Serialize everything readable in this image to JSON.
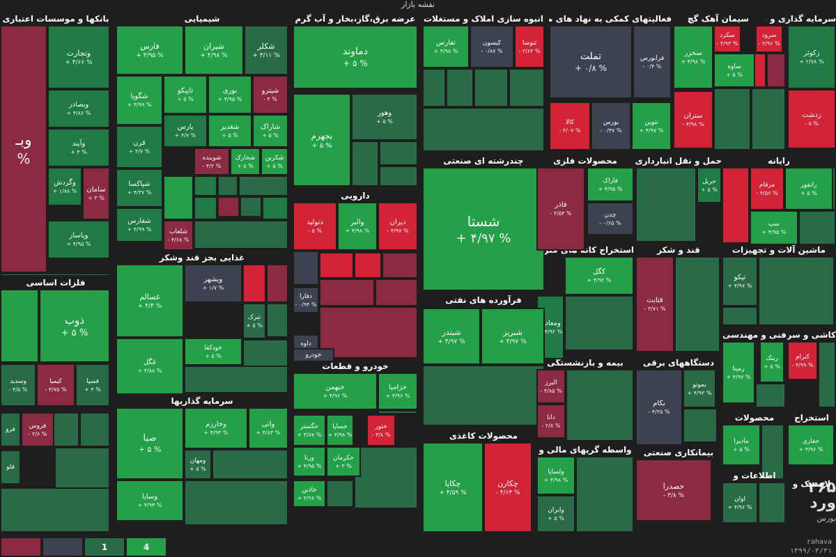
{
  "title": "نقشه بازار",
  "legend": [
    "",
    "",
    "1",
    "4"
  ],
  "source": {
    "site": "rahava",
    "date": "۱۳۹۹/۰۳/۳۱"
  },
  "watermark": {
    "line1": "۳۶۵",
    "line2": "ورد",
    "line3": "بورس"
  },
  "colors": {
    "green": "#24a148",
    "red": "#d32337",
    "neutral": "#3d4250",
    "background": "#1e1e1e"
  },
  "sectors": [
    {
      "name": "بانکها و موسسات اعتباری"
    },
    {
      "name": "شیمیایی"
    },
    {
      "name": "عرضه برق،گاز،بخار و آب گرم"
    },
    {
      "name": "انبوه سازی املاک و مستغلات"
    },
    {
      "name": "فعالیتهای کمکی به نهاد های مالی"
    },
    {
      "name": "سیمان آهک گچ"
    },
    {
      "name": "سرمایه گذاری و وابسته"
    },
    {
      "name": "فلزات اساسی"
    },
    {
      "name": "غذایی بجز قند وشکر"
    },
    {
      "name": "دارویی"
    },
    {
      "name": "چندرشته ای صنعتی"
    },
    {
      "name": "محصولات فلزی"
    },
    {
      "name": "حمل و نقل انبارداری و"
    },
    {
      "name": "رایانه"
    },
    {
      "name": "استخراج کانه های فلزی"
    },
    {
      "name": "قند و شکر"
    },
    {
      "name": "ماشین آلات و تجهیزات"
    },
    {
      "name": "فرآورده های نفتی"
    },
    {
      "name": "خودرو و قطعات"
    },
    {
      "name": "سرمایه گذاریها"
    },
    {
      "name": "بیمه و بازنشستگی"
    },
    {
      "name": "دستگاههای برقی"
    },
    {
      "name": "فنی و مهندسی"
    },
    {
      "name": "کاشی و سرامیک"
    },
    {
      "name": "محصولات کاغذی"
    },
    {
      "name": "واسطه گریهای مالی و"
    },
    {
      "name": "بیمانکاری صنعتی"
    },
    {
      "name": "محصولات"
    },
    {
      "name": "استخراج"
    },
    {
      "name": "اطلاعات و"
    },
    {
      "name": "لاستیک و"
    }
  ],
  "tiles": [
    {
      "name": "وبـ",
      "change": "%"
    },
    {
      "name": "وتجارت",
      "change": "+ ۴/۶۶ %"
    },
    {
      "name": "وبصادر",
      "change": "+ ۴/۸۶ %"
    },
    {
      "name": "وآیند",
      "change": "+ ۴ %"
    },
    {
      "name": "وگردش",
      "change": "+ ۱/۸۸ %"
    },
    {
      "name": "سامان",
      "change": "+ ۳ %"
    },
    {
      "name": "وپاسار",
      "change": "+ ۴/۹۵ %"
    },
    {
      "name": "فارس",
      "change": "+ ۴/۹۵ %"
    },
    {
      "name": "شیران",
      "change": "+ ۴/۹۸ %"
    },
    {
      "name": "شکلر",
      "change": "+ ۳/۱۱ %"
    },
    {
      "name": "شگویا",
      "change": "+ ۴/۹۹ %"
    },
    {
      "name": "تاپیکو",
      "change": "+ ۵ %"
    },
    {
      "name": "نوری",
      "change": "+ ۴/۹۵ %"
    },
    {
      "name": "شپترو",
      "change": "- ۳ %"
    },
    {
      "name": "قرن",
      "change": "+ ۳/۷ %"
    },
    {
      "name": "پارس",
      "change": "+ ۴/۷ %"
    },
    {
      "name": "شغدیر",
      "change": "+ ۵ %"
    },
    {
      "name": "شاراک",
      "change": "+ ۵ %"
    },
    {
      "name": "شپاکسا",
      "change": "+ ۴/۳۷ %"
    },
    {
      "name": "شوینده",
      "change": "- ۴/۲ %"
    },
    {
      "name": "شخارک",
      "change": "+ ۵ %"
    },
    {
      "name": "شکربن",
      "change": "+ ۵ %"
    },
    {
      "name": "شفارس",
      "change": "+ ۴/۹۹ %"
    },
    {
      "name": "شلعاب",
      "change": "- ۴/۶۸ %"
    },
    {
      "name": "دماوند",
      "change": "+ ۵ %"
    },
    {
      "name": "بجهرم",
      "change": "+ ۵ %"
    },
    {
      "name": "وهور",
      "change": "+ ۵ %"
    },
    {
      "name": "تفارس",
      "change": "+ ۴/۹۸ %"
    },
    {
      "name": "کیسون",
      "change": "- ۰/۸۷ %"
    },
    {
      "name": "ثنوسا",
      "change": "- ۳/۶۳ %"
    },
    {
      "name": "تملت",
      "change": "+ ۰/۸ %"
    },
    {
      "name": "فرابورس",
      "change": "- ۰/۴ %"
    },
    {
      "name": "کالا",
      "change": "- ۴/۰۷ %"
    },
    {
      "name": "بورس",
      "change": "- ۰/۴۷ %"
    },
    {
      "name": "تنوین",
      "change": "+ ۴/۹۷ %"
    },
    {
      "name": "سخزر",
      "change": "+ ۴/۹۸ %"
    },
    {
      "name": "سکرد",
      "change": "- ۴/۹۳ %"
    },
    {
      "name": "سرود",
      "change": "- ۴/۹۶ %"
    },
    {
      "name": "ساوه",
      "change": "+ ۵ %"
    },
    {
      "name": "ستران",
      "change": "- ۴/۹۸ %"
    },
    {
      "name": "زکوثر",
      "change": "+ ۲/۷۸ %"
    },
    {
      "name": "زدشت",
      "change": "- ۵ %"
    },
    {
      "name": "ذوب",
      "change": "+ ۵ %"
    },
    {
      "name": "وسدید",
      "change": "- ۴/۵ %"
    },
    {
      "name": "کیمیا",
      "change": "- ۴/۷۵ %"
    },
    {
      "name": "فسپا",
      "change": "+ ۴ %"
    },
    {
      "name": "فروس",
      "change": "- ۳/۶ %"
    },
    {
      "name": "فرو",
      "change": ""
    },
    {
      "name": "فلو",
      "change": ""
    },
    {
      "name": "غسالم",
      "change": "+ ۴/۴ %"
    },
    {
      "name": "ویشهر",
      "change": "+ ۱/۷ %"
    },
    {
      "name": "تبرک",
      "change": "+ ۵ %"
    },
    {
      "name": "خودکفا",
      "change": "+ ۵ %"
    },
    {
      "name": "غگل",
      "change": "+ ۴/۸۸ %"
    },
    {
      "name": "دتولید",
      "change": "- ۵ %"
    },
    {
      "name": "والبر",
      "change": "+ ۴/۹۸ %"
    },
    {
      "name": "دیران",
      "change": "- ۴/۹۷ %"
    },
    {
      "name": "دفارا",
      "change": "- ۰/۹۴ %"
    },
    {
      "name": "داوه",
      "change": "- ۴/۶۹ %"
    },
    {
      "name": "شستا",
      "change": "+ ۴/۹۷ %"
    },
    {
      "name": "فاراک",
      "change": "+ ۴/۹۵ %"
    },
    {
      "name": "فاذر",
      "change": "- ۳/۵۴ %"
    },
    {
      "name": "چدن",
      "change": "- ۰/۶۵ %"
    },
    {
      "name": "حریل",
      "change": "+ ۵ %"
    },
    {
      "name": "مرقام",
      "change": "- ۴/۵۶ %"
    },
    {
      "name": "رانفور",
      "change": "+ ۵ %"
    },
    {
      "name": "سپ",
      "change": "+ ۴/۹۵ %"
    },
    {
      "name": "کگل",
      "change": "+ ۴/۹۲ %"
    },
    {
      "name": "ومعادن",
      "change": "+ ۴/۹۲ %"
    },
    {
      "name": "قثابت",
      "change": "- ۳/۷۱ %"
    },
    {
      "name": "تیکو",
      "change": "+ ۴/۹۷ %"
    },
    {
      "name": "شبندر",
      "change": "+ ۴/۹۷ %"
    },
    {
      "name": "شبریز",
      "change": "+ ۴/۹۷ %"
    },
    {
      "name": "خودرو",
      "change": ""
    },
    {
      "name": "خبهمن",
      "change": "+ ۴/۹۶ %"
    },
    {
      "name": "خزامیا",
      "change": "+ ۴/۹۶ %"
    },
    {
      "name": "خگستر",
      "change": "+ ۴/۸۷ %"
    },
    {
      "name": "خساپا",
      "change": "+ ۴/۹۸ %"
    },
    {
      "name": "ختور",
      "change": "- ۴/۸ %"
    },
    {
      "name": "ورنا",
      "change": "+ ۴/۹۵ %"
    },
    {
      "name": "خکرمان",
      "change": "+ ۳ %"
    },
    {
      "name": "خاذین",
      "change": "+ ۴/۹۶ %"
    },
    {
      "name": "صبا",
      "change": "+ ۵ %"
    },
    {
      "name": "وخارزم",
      "change": "+ ۴/۹۳ %"
    },
    {
      "name": "واتی",
      "change": "+ ۴/۸۳ %"
    },
    {
      "name": "ومهان",
      "change": "+ ۵ %"
    },
    {
      "name": "وسایا",
      "change": "+ ۴/۹۴ %"
    },
    {
      "name": "البرز",
      "change": "- ۴/۸۵ %"
    },
    {
      "name": "دانا",
      "change": "- ۲/۸ %"
    },
    {
      "name": "بکام",
      "change": "- ۴/۳۵ %"
    },
    {
      "name": "بموتو",
      "change": "+ ۴/۹۳ %"
    },
    {
      "name": "رمپنا",
      "change": "+ ۴/۹۷ %"
    },
    {
      "name": "کنرام",
      "change": "- ۴/۹۹ %"
    },
    {
      "name": "ربنک",
      "change": "+ ۵ %"
    },
    {
      "name": "چکاپا",
      "change": "+ ۴/۵۹ %"
    },
    {
      "name": "چکارن",
      "change": "- ۴/۶۳ %"
    },
    {
      "name": "ولساپا",
      "change": "+ ۴/۹۸ %"
    },
    {
      "name": "وایران",
      "change": "+ ۵ %"
    },
    {
      "name": "خصدرا",
      "change": "- ۳/۸ %"
    },
    {
      "name": "مادیرا",
      "change": "+ ۵ %"
    },
    {
      "name": "حفاری",
      "change": "+ ۴/۹۶ %"
    },
    {
      "name": "اوان",
      "change": "+ ۴/۹۶ %"
    }
  ]
}
